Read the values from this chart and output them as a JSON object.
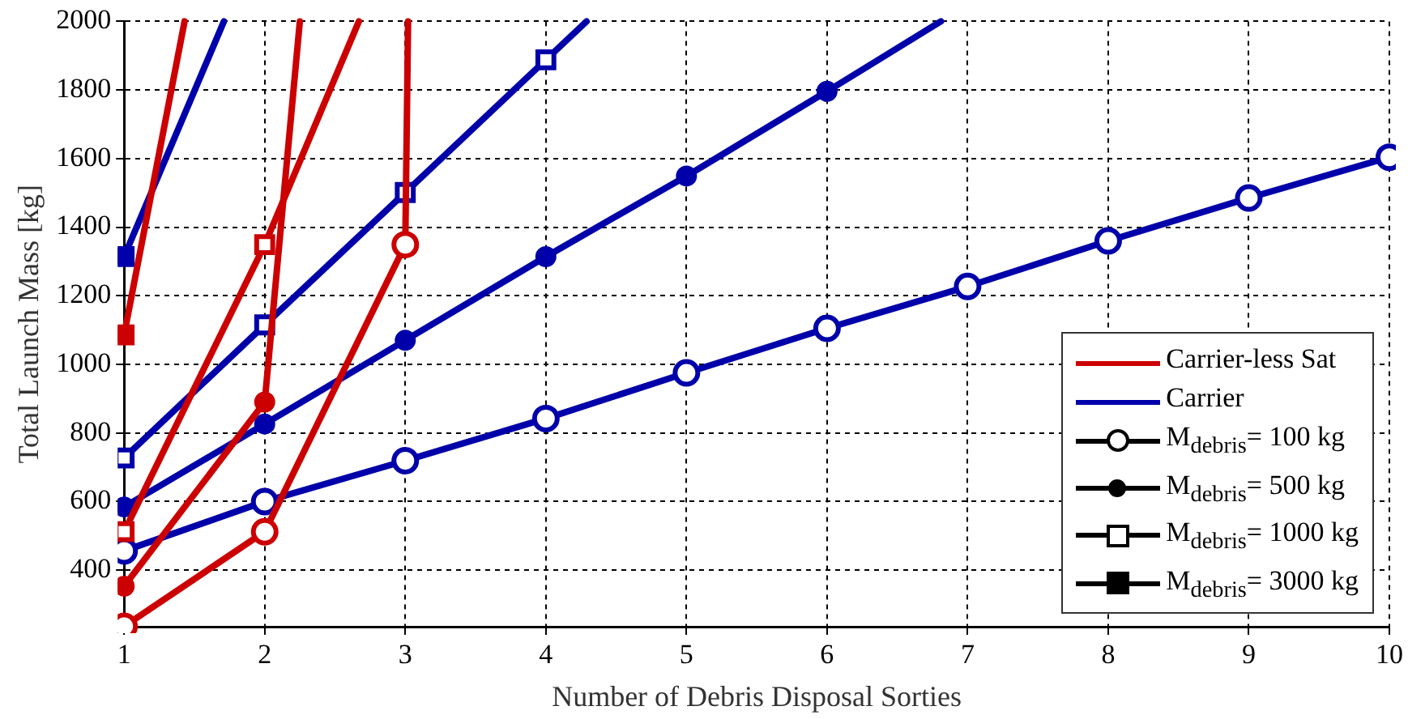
{
  "chart_data": {
    "type": "line",
    "xlabel": "Number of Debris Disposal Sorties",
    "ylabel": "Total Launch Mass [kg]",
    "x": [
      1,
      2,
      3,
      4,
      5,
      6,
      7,
      8,
      9,
      10
    ],
    "xlim": [
      1,
      10
    ],
    "xticks": [
      1,
      2,
      3,
      4,
      5,
      6,
      7,
      8,
      9,
      10
    ],
    "ylim": [
      235,
      2000
    ],
    "yticks": [
      400,
      600,
      800,
      1000,
      1200,
      1400,
      1600,
      1800,
      2000
    ],
    "grid": true,
    "legend": "bottom right",
    "series": [
      {
        "color": "#cc0000",
        "marker": "circle-open",
        "x": [
          1,
          2,
          3,
          3.02
        ],
        "values": [
          236,
          512,
          1349,
          2000
        ]
      },
      {
        "color": "#cc0000",
        "marker": "circle",
        "x": [
          1,
          2,
          2.25
        ],
        "values": [
          353,
          890,
          2000
        ]
      },
      {
        "color": "#cc0000",
        "marker": "square-open",
        "x": [
          1,
          2,
          2.67
        ],
        "values": [
          512,
          1349,
          2000
        ]
      },
      {
        "color": "#cc0000",
        "marker": "square",
        "x": [
          1,
          1.43
        ],
        "values": [
          1086,
          2000
        ]
      },
      {
        "color": "#0000aa",
        "marker": "circle-open",
        "values": [
          456,
          600,
          719,
          842,
          975,
          1105,
          1227,
          1360,
          1485,
          1604
        ]
      },
      {
        "color": "#0000aa",
        "marker": "circle",
        "x": [
          1,
          2,
          3,
          4,
          5,
          6,
          6.81
        ],
        "values": [
          584,
          826,
          1070,
          1314,
          1549,
          1796,
          2000
        ]
      },
      {
        "color": "#0000aa",
        "marker": "square-open",
        "x": [
          1,
          2,
          3,
          4,
          4.29
        ],
        "values": [
          727,
          1115,
          1501,
          1888,
          2000
        ]
      },
      {
        "color": "#0000aa",
        "marker": "square",
        "x": [
          1,
          1.71
        ],
        "values": [
          1314,
          2000
        ]
      },
      {
        "name": "Carrier-less Sat",
        "color": "#cc0000",
        "marker": "none",
        "values": [
          null,
          null,
          null,
          null,
          null,
          null,
          null,
          null,
          null,
          null
        ]
      },
      {
        "name": "Carrier",
        "color": "#0000aa",
        "marker": "none",
        "values": [
          null,
          null,
          null,
          null,
          null,
          null,
          null,
          null,
          null,
          null
        ]
      },
      {
        "name": "M$_{debris}$= 100 kg",
        "color": "#000000",
        "marker": "circle-open",
        "values": [
          null,
          null,
          null,
          null,
          null,
          null,
          null,
          null,
          null,
          null
        ]
      },
      {
        "name": "M$_{debris}$= 500 kg",
        "color": "#000000",
        "marker": "circle",
        "values": [
          null,
          null,
          null,
          null,
          null,
          null,
          null,
          null,
          null,
          null
        ]
      },
      {
        "name": "M$_{debris}$= 1000 kg",
        "color": "#000000",
        "marker": "square-open",
        "values": [
          null,
          null,
          null,
          null,
          null,
          null,
          null,
          null,
          null,
          null
        ]
      },
      {
        "name": "M$_{debris}$= 3000 kg",
        "color": "#000000",
        "marker": "square",
        "values": [
          null,
          null,
          null,
          null,
          null,
          null,
          null,
          null,
          null,
          null
        ]
      }
    ]
  }
}
